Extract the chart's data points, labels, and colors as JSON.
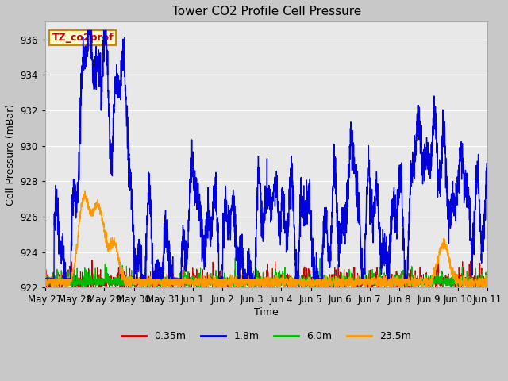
{
  "title": "Tower CO2 Profile Cell Pressure",
  "ylabel": "Cell Pressure (mBar)",
  "xlabel": "Time",
  "annotation_text": "TZ_co2prof",
  "annotation_color": "#cc0000",
  "annotation_bg": "#ffffcc",
  "annotation_border": "#cc8800",
  "ylim": [
    922,
    937
  ],
  "xlim": [
    0,
    15
  ],
  "legend_labels": [
    "0.35m",
    "1.8m",
    "6.0m",
    "23.5m"
  ],
  "legend_colors": [
    "#cc0000",
    "#0000dd",
    "#00bb00",
    "#ff9900"
  ],
  "fig_bg": "#c8c8c8",
  "plot_bg": "#e8e8e8",
  "yticks": [
    922,
    924,
    926,
    928,
    930,
    932,
    934,
    936
  ],
  "tick_labels": [
    "May 27",
    "May 28",
    "May 29",
    "May 30",
    "May 31",
    "Jun 1",
    "Jun 2",
    "Jun 3",
    "Jun 4",
    "Jun 5",
    "Jun 6",
    "Jun 7",
    "Jun 8",
    "Jun 9",
    "Jun 10",
    "Jun 11"
  ],
  "n_points": 3000
}
